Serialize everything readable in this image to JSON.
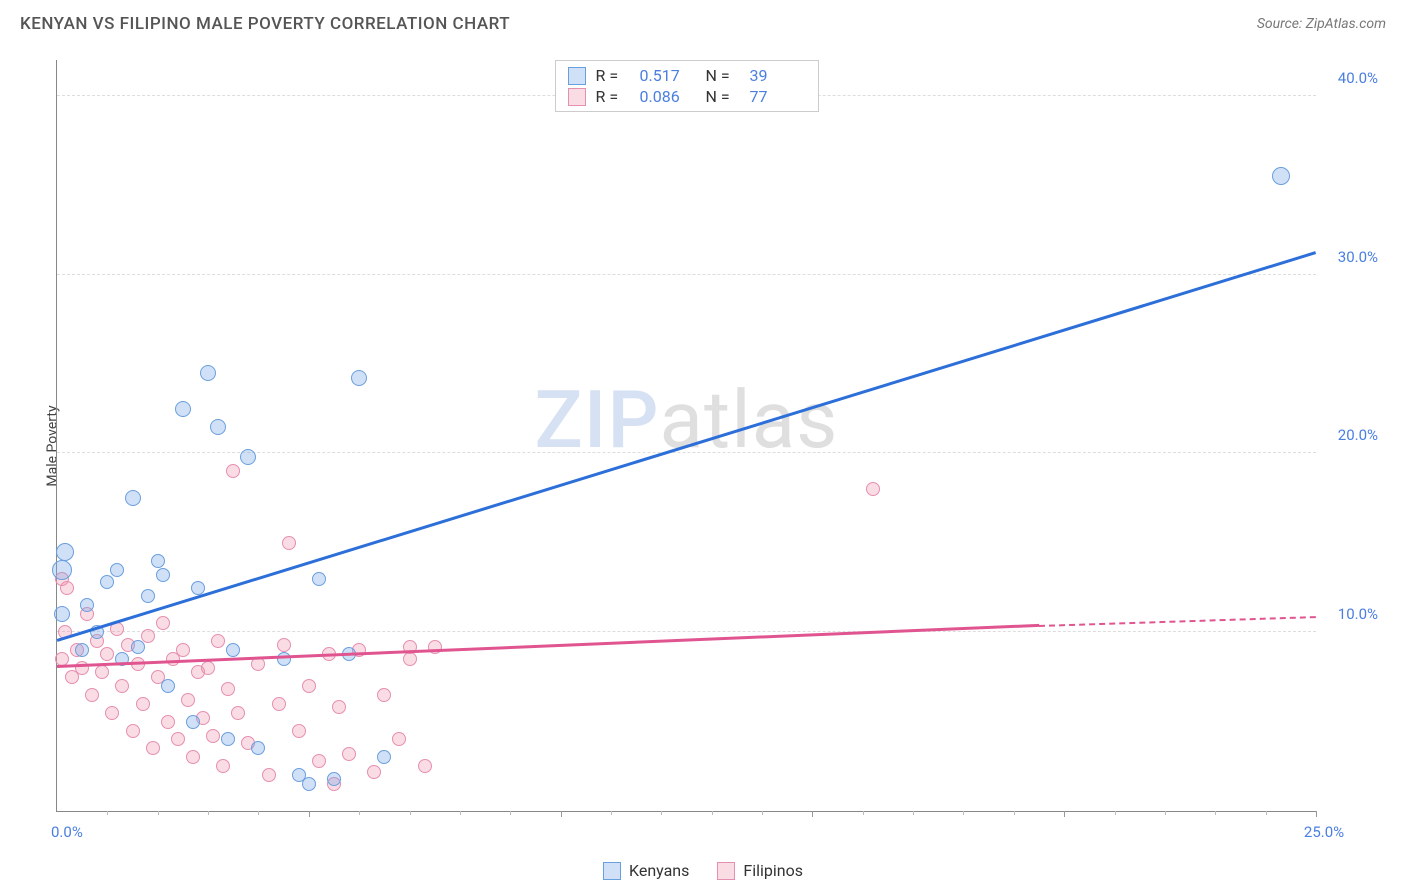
{
  "header": {
    "title": "KENYAN VS FILIPINO MALE POVERTY CORRELATION CHART",
    "source": "Source: ZipAtlas.com"
  },
  "ylabel": "Male Poverty",
  "watermark": {
    "part1": "ZIP",
    "part2": "atlas"
  },
  "colors": {
    "blue_fill": "rgba(120,165,230,0.35)",
    "blue_stroke": "#6a9fde",
    "blue_line": "#2d6fd8",
    "pink_fill": "rgba(240,140,170,0.30)",
    "pink_stroke": "#e68fb0",
    "pink_line": "#e05590",
    "axis_label": "#4a7fe0",
    "grid": "#dddddd"
  },
  "legend_top": {
    "rows": [
      {
        "swatch": "blue",
        "r_label": "R =",
        "r_val": "0.517",
        "n_label": "N =",
        "n_val": "39"
      },
      {
        "swatch": "pink",
        "r_label": "R =",
        "r_val": "0.086",
        "n_label": "N =",
        "n_val": "77"
      }
    ]
  },
  "legend_bottom": {
    "items": [
      {
        "swatch": "blue",
        "label": "Kenyans"
      },
      {
        "swatch": "pink",
        "label": "Filipinos"
      }
    ]
  },
  "axes": {
    "xmin": 0,
    "xmax": 25,
    "ymin": 0,
    "ymax": 42,
    "yticks": [
      {
        "v": 10,
        "label": "10.0%"
      },
      {
        "v": 20,
        "label": "20.0%"
      },
      {
        "v": 30,
        "label": "30.0%"
      },
      {
        "v": 40,
        "label": "40.0%"
      }
    ],
    "origin_label": "0.0%",
    "xmax_label": "25.0%",
    "x_major_ticks": [
      5,
      10,
      15,
      20,
      25
    ],
    "x_minor_ticks": [
      1,
      2,
      3,
      4,
      6,
      7,
      8,
      9,
      11,
      12,
      13,
      14,
      16,
      17,
      18,
      19,
      21,
      22,
      23,
      24
    ]
  },
  "series": {
    "blue": {
      "trend": {
        "x1": 0,
        "y1": 9.5,
        "x2": 25,
        "y2": 31.2
      },
      "points": [
        {
          "x": 0.1,
          "y": 11.0,
          "r": 8
        },
        {
          "x": 0.1,
          "y": 13.5,
          "r": 10
        },
        {
          "x": 0.15,
          "y": 14.5,
          "r": 9
        },
        {
          "x": 0.5,
          "y": 9.0,
          "r": 7
        },
        {
          "x": 0.6,
          "y": 11.5,
          "r": 7
        },
        {
          "x": 0.8,
          "y": 10.0,
          "r": 7
        },
        {
          "x": 1.0,
          "y": 12.8,
          "r": 7
        },
        {
          "x": 1.2,
          "y": 13.5,
          "r": 7
        },
        {
          "x": 1.3,
          "y": 8.5,
          "r": 7
        },
        {
          "x": 1.5,
          "y": 17.5,
          "r": 8
        },
        {
          "x": 1.6,
          "y": 9.2,
          "r": 7
        },
        {
          "x": 1.8,
          "y": 12.0,
          "r": 7
        },
        {
          "x": 2.0,
          "y": 14.0,
          "r": 7
        },
        {
          "x": 2.1,
          "y": 13.2,
          "r": 7
        },
        {
          "x": 2.2,
          "y": 7.0,
          "r": 7
        },
        {
          "x": 2.5,
          "y": 22.5,
          "r": 8
        },
        {
          "x": 2.7,
          "y": 5.0,
          "r": 7
        },
        {
          "x": 2.8,
          "y": 12.5,
          "r": 7
        },
        {
          "x": 3.0,
          "y": 24.5,
          "r": 8
        },
        {
          "x": 3.2,
          "y": 21.5,
          "r": 8
        },
        {
          "x": 3.4,
          "y": 4.0,
          "r": 7
        },
        {
          "x": 3.5,
          "y": 9.0,
          "r": 7
        },
        {
          "x": 3.8,
          "y": 19.8,
          "r": 8
        },
        {
          "x": 4.0,
          "y": 3.5,
          "r": 7
        },
        {
          "x": 4.5,
          "y": 8.5,
          "r": 7
        },
        {
          "x": 4.8,
          "y": 2.0,
          "r": 7
        },
        {
          "x": 5.0,
          "y": 1.5,
          "r": 7
        },
        {
          "x": 5.2,
          "y": 13.0,
          "r": 7
        },
        {
          "x": 5.5,
          "y": 1.8,
          "r": 7
        },
        {
          "x": 5.8,
          "y": 8.8,
          "r": 7
        },
        {
          "x": 6.0,
          "y": 24.2,
          "r": 8
        },
        {
          "x": 6.5,
          "y": 3.0,
          "r": 7
        },
        {
          "x": 24.3,
          "y": 35.5,
          "r": 9
        }
      ]
    },
    "pink": {
      "trend_solid": {
        "x1": 0,
        "y1": 8.0,
        "x2": 19.5,
        "y2": 10.3
      },
      "trend_dash": {
        "x1": 19.5,
        "y1": 10.3,
        "x2": 25,
        "y2": 10.8
      },
      "points": [
        {
          "x": 0.1,
          "y": 13.0,
          "r": 7
        },
        {
          "x": 0.1,
          "y": 8.5,
          "r": 7
        },
        {
          "x": 0.15,
          "y": 10.0,
          "r": 7
        },
        {
          "x": 0.2,
          "y": 12.5,
          "r": 7
        },
        {
          "x": 0.3,
          "y": 7.5,
          "r": 7
        },
        {
          "x": 0.4,
          "y": 9.0,
          "r": 7
        },
        {
          "x": 0.5,
          "y": 8.0,
          "r": 7
        },
        {
          "x": 0.6,
          "y": 11.0,
          "r": 7
        },
        {
          "x": 0.7,
          "y": 6.5,
          "r": 7
        },
        {
          "x": 0.8,
          "y": 9.5,
          "r": 7
        },
        {
          "x": 0.9,
          "y": 7.8,
          "r": 7
        },
        {
          "x": 1.0,
          "y": 8.8,
          "r": 7
        },
        {
          "x": 1.1,
          "y": 5.5,
          "r": 7
        },
        {
          "x": 1.2,
          "y": 10.2,
          "r": 7
        },
        {
          "x": 1.3,
          "y": 7.0,
          "r": 7
        },
        {
          "x": 1.4,
          "y": 9.3,
          "r": 7
        },
        {
          "x": 1.5,
          "y": 4.5,
          "r": 7
        },
        {
          "x": 1.6,
          "y": 8.2,
          "r": 7
        },
        {
          "x": 1.7,
          "y": 6.0,
          "r": 7
        },
        {
          "x": 1.8,
          "y": 9.8,
          "r": 7
        },
        {
          "x": 1.9,
          "y": 3.5,
          "r": 7
        },
        {
          "x": 2.0,
          "y": 7.5,
          "r": 7
        },
        {
          "x": 2.1,
          "y": 10.5,
          "r": 7
        },
        {
          "x": 2.2,
          "y": 5.0,
          "r": 7
        },
        {
          "x": 2.3,
          "y": 8.5,
          "r": 7
        },
        {
          "x": 2.4,
          "y": 4.0,
          "r": 7
        },
        {
          "x": 2.5,
          "y": 9.0,
          "r": 7
        },
        {
          "x": 2.6,
          "y": 6.2,
          "r": 7
        },
        {
          "x": 2.7,
          "y": 3.0,
          "r": 7
        },
        {
          "x": 2.8,
          "y": 7.8,
          "r": 7
        },
        {
          "x": 2.9,
          "y": 5.2,
          "r": 7
        },
        {
          "x": 3.0,
          "y": 8.0,
          "r": 7
        },
        {
          "x": 3.1,
          "y": 4.2,
          "r": 7
        },
        {
          "x": 3.2,
          "y": 9.5,
          "r": 7
        },
        {
          "x": 3.3,
          "y": 2.5,
          "r": 7
        },
        {
          "x": 3.4,
          "y": 6.8,
          "r": 7
        },
        {
          "x": 3.5,
          "y": 19.0,
          "r": 7
        },
        {
          "x": 3.6,
          "y": 5.5,
          "r": 7
        },
        {
          "x": 3.8,
          "y": 3.8,
          "r": 7
        },
        {
          "x": 4.0,
          "y": 8.2,
          "r": 7
        },
        {
          "x": 4.2,
          "y": 2.0,
          "r": 7
        },
        {
          "x": 4.4,
          "y": 6.0,
          "r": 7
        },
        {
          "x": 4.5,
          "y": 9.3,
          "r": 7
        },
        {
          "x": 4.6,
          "y": 15.0,
          "r": 7
        },
        {
          "x": 4.8,
          "y": 4.5,
          "r": 7
        },
        {
          "x": 5.0,
          "y": 7.0,
          "r": 7
        },
        {
          "x": 5.2,
          "y": 2.8,
          "r": 7
        },
        {
          "x": 5.4,
          "y": 8.8,
          "r": 7
        },
        {
          "x": 5.5,
          "y": 1.5,
          "r": 7
        },
        {
          "x": 5.6,
          "y": 5.8,
          "r": 7
        },
        {
          "x": 5.8,
          "y": 3.2,
          "r": 7
        },
        {
          "x": 6.0,
          "y": 9.0,
          "r": 7
        },
        {
          "x": 6.3,
          "y": 2.2,
          "r": 7
        },
        {
          "x": 6.5,
          "y": 6.5,
          "r": 7
        },
        {
          "x": 6.8,
          "y": 4.0,
          "r": 7
        },
        {
          "x": 7.0,
          "y": 8.5,
          "r": 7
        },
        {
          "x": 7.0,
          "y": 9.2,
          "r": 7
        },
        {
          "x": 7.3,
          "y": 2.5,
          "r": 7
        },
        {
          "x": 7.5,
          "y": 9.2,
          "r": 7
        },
        {
          "x": 16.2,
          "y": 18.0,
          "r": 7
        }
      ]
    }
  }
}
